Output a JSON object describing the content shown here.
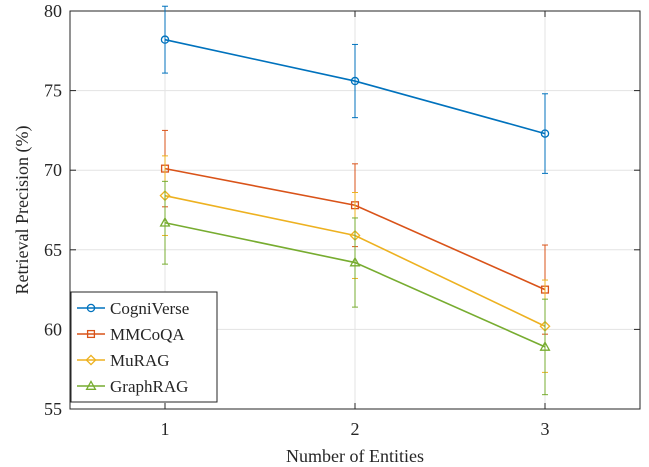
{
  "chart_data": {
    "type": "line",
    "title": "",
    "xlabel": "Number of Entities",
    "ylabel": "Retrieval Precision (%)",
    "x": [
      1,
      2,
      3
    ],
    "xlim": [
      0.5,
      3.5
    ],
    "ylim": [
      55,
      80
    ],
    "xticks": [
      1,
      2,
      3
    ],
    "yticks": [
      55,
      60,
      65,
      70,
      75,
      80
    ],
    "grid": true,
    "legend_position": "bottom-left",
    "series": [
      {
        "name": "CogniVerse",
        "values": [
          78.2,
          75.6,
          72.3
        ],
        "err": [
          2.1,
          2.3,
          2.5
        ],
        "color": "#0072BD",
        "marker": "circle"
      },
      {
        "name": "MMCoQA",
        "values": [
          70.1,
          67.8,
          62.5
        ],
        "err": [
          2.4,
          2.6,
          2.8
        ],
        "color": "#D95319",
        "marker": "square"
      },
      {
        "name": "MuRAG",
        "values": [
          68.4,
          65.9,
          60.2
        ],
        "err": [
          2.5,
          2.7,
          2.9
        ],
        "color": "#EDB120",
        "marker": "diamond"
      },
      {
        "name": "GraphRAG",
        "values": [
          66.7,
          64.2,
          58.9
        ],
        "err": [
          2.6,
          2.8,
          3.0
        ],
        "color": "#77AC30",
        "marker": "triangle"
      }
    ]
  }
}
